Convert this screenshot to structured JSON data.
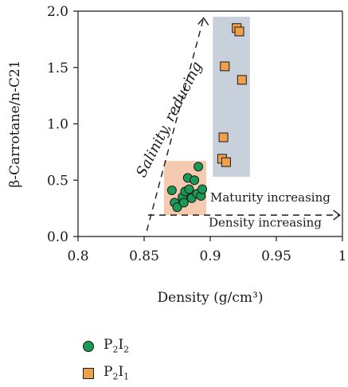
{
  "chart_data": {
    "type": "scatter",
    "xlabel": "Density (g/cm³)",
    "ylabel": "β-Carrotane/n-C21",
    "xlim": [
      0.8,
      1.0
    ],
    "ylim": [
      0.0,
      2.0
    ],
    "x_ticks": [
      "0.8",
      "0.85",
      "0.9",
      "0.95",
      "1"
    ],
    "y_ticks": [
      "0.0",
      "0.5",
      "1.0",
      "1.5",
      "2.0"
    ],
    "grid": false,
    "series": [
      {
        "name": "P2I2",
        "marker": "circle",
        "color": "#1a9a55",
        "x": [
          0.871,
          0.873,
          0.875,
          0.879,
          0.88,
          0.881,
          0.883,
          0.884,
          0.886,
          0.888,
          0.89,
          0.891,
          0.893,
          0.894
        ],
        "y": [
          0.41,
          0.3,
          0.26,
          0.35,
          0.3,
          0.4,
          0.52,
          0.42,
          0.34,
          0.5,
          0.38,
          0.62,
          0.36,
          0.42
        ]
      },
      {
        "name": "P2I1",
        "marker": "square",
        "color": "#f0a04b",
        "x": [
          0.909,
          0.91,
          0.911,
          0.912,
          0.92,
          0.922,
          0.924
        ],
        "y": [
          0.69,
          0.88,
          1.51,
          0.66,
          1.85,
          1.82,
          1.39
        ]
      }
    ],
    "regions": [
      {
        "x": [
          0.865,
          0.897
        ],
        "y": [
          0.19,
          0.67
        ],
        "color": "#f4cbb0"
      },
      {
        "x": [
          0.902,
          0.93
        ],
        "y": [
          0.53,
          1.95
        ],
        "color": "#c8d0dc"
      }
    ],
    "annotations": [
      {
        "text": "Salinity, reducing"
      },
      {
        "text": "Maturity increasing"
      },
      {
        "text": "Density increasing"
      }
    ],
    "legend": {
      "placement": "bottom-left",
      "entries": [
        {
          "base": "P",
          "sub1": "2",
          "mid": "I",
          "sub2": "2"
        },
        {
          "base": "P",
          "sub1": "2",
          "mid": "I",
          "sub2": "1"
        }
      ]
    }
  }
}
